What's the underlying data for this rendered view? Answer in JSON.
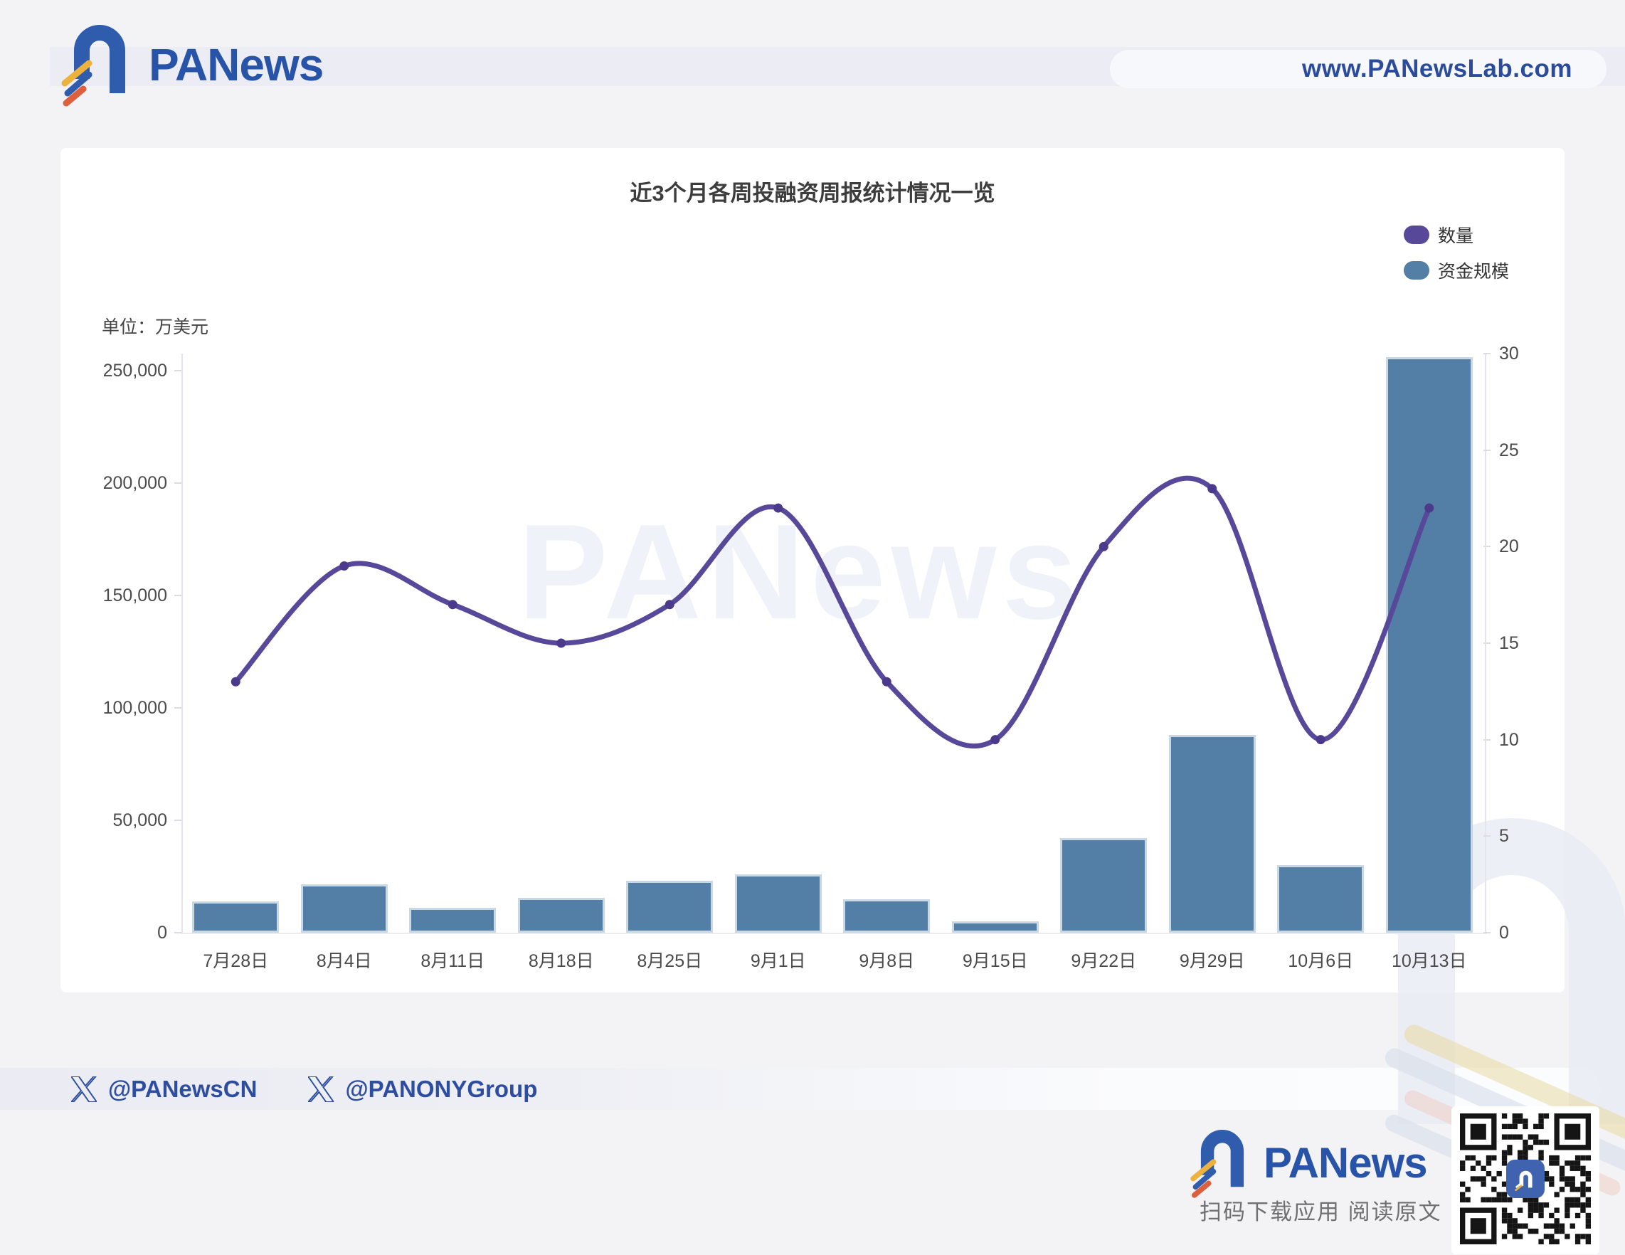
{
  "header": {
    "logo_text": "PANews",
    "site_url": "www.PANewsLab.com"
  },
  "chart_data": {
    "type": "bar+line",
    "title": "近3个月各周投融资周报统计情况一览",
    "unit_label": "单位：万美元",
    "watermark": "PANews",
    "legend_position": "top-right",
    "categories": [
      "7月28日",
      "8月4日",
      "8月11日",
      "8月18日",
      "8月25日",
      "9月1日",
      "9月8日",
      "9月15日",
      "9月22日",
      "9月29日",
      "10月6日",
      "10月13日"
    ],
    "series": [
      {
        "name": "数量",
        "type": "line",
        "axis": "right",
        "color": "#57489a",
        "marker_color": "#4b3a8b",
        "values": [
          13,
          19,
          17,
          15,
          17,
          22,
          13,
          10,
          20,
          23,
          10,
          22
        ]
      },
      {
        "name": "资金规模",
        "type": "bar",
        "axis": "left",
        "color": "#537ea6",
        "border_color": "#c9d8e5",
        "values": [
          14000,
          21500,
          11000,
          15500,
          23000,
          26000,
          15000,
          5000,
          42000,
          88000,
          30000,
          256000
        ]
      }
    ],
    "left_axis": {
      "tick_labels": [
        "0",
        "50,000",
        "100,000",
        "150,000",
        "200,000",
        "250,000"
      ],
      "tick_values": [
        0,
        50000,
        100000,
        150000,
        200000,
        250000
      ],
      "max_value": 257500
    },
    "right_axis": {
      "tick_labels": [
        "0",
        "5",
        "10",
        "15",
        "20",
        "25",
        "30"
      ],
      "tick_values": [
        0,
        5,
        10,
        15,
        20,
        25,
        30
      ],
      "max_value": 30
    }
  },
  "footer": {
    "handles": [
      {
        "label": "@PANewsCN"
      },
      {
        "label": "@PANONYGroup"
      }
    ],
    "logo_text": "PANews",
    "qr_caption": "扫码下载应用  阅读原文"
  }
}
